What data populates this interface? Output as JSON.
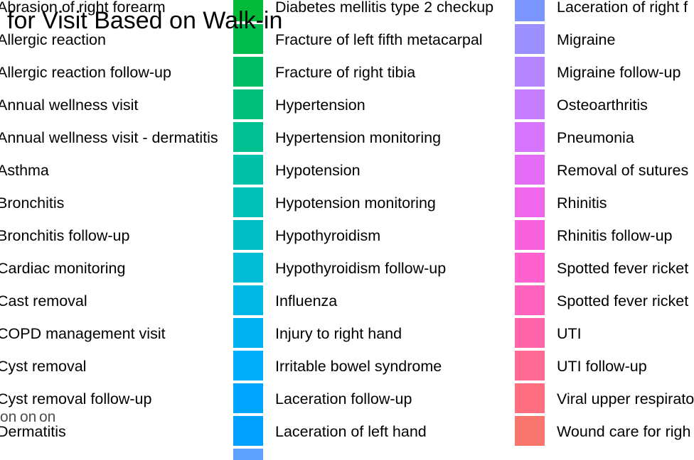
{
  "chart_data": {
    "type": "bar",
    "title": "for Visit Based on Walk-in",
    "axis_fragment": "on",
    "legend": {
      "placement": "right",
      "columns": [
        [
          {
            "label": "Abrasion of right forearm",
            "color": "#00BB4A"
          },
          {
            "label": "Allergic reaction",
            "color": "#00BD5C"
          },
          {
            "label": "Allergic reaction follow-up",
            "color": "#00BE6C"
          },
          {
            "label": "Annual wellness visit",
            "color": "#00BF7C"
          },
          {
            "label": "Annual wellness visit - dermatitis",
            "color": "#00C08B"
          },
          {
            "label": "Asthma",
            "color": "#00C19A"
          },
          {
            "label": "Bronchitis",
            "color": "#00C1A8"
          },
          {
            "label": "Bronchitis follow-up",
            "color": "#00C0B5"
          },
          {
            "label": "Cardiac monitoring",
            "color": "#00BFC2"
          },
          {
            "label": "Cast removal",
            "color": "#00BDCF"
          },
          {
            "label": "COPD management visit",
            "color": "#00BADB"
          },
          {
            "label": "Cyst removal",
            "color": "#00B6E6"
          },
          {
            "label": "Cyst removal follow-up",
            "color": "#00B1F1"
          },
          {
            "label": "Dermatitis",
            "color": "#00A9FF"
          }
        ],
        [
          {
            "label": "Diabetes mellitis type 2 checkup",
            "color": "#00BA38"
          },
          {
            "label": "Fracture of left fifth metacarpal",
            "color": "#00BB4E"
          },
          {
            "label": "Fracture of right tibia",
            "color": "#00BE67"
          },
          {
            "label": "Hypertension",
            "color": "#00BF7D"
          },
          {
            "label": "Hypertension monitoring",
            "color": "#00C092"
          },
          {
            "label": "Hypotension",
            "color": "#00C1A7"
          },
          {
            "label": "Hypotension monitoring",
            "color": "#00C0B8"
          },
          {
            "label": "Hypothyroidism",
            "color": "#00BFC4"
          },
          {
            "label": "Hypothyroidism follow-up",
            "color": "#00BCD5"
          },
          {
            "label": "Influenza",
            "color": "#00B8E5"
          },
          {
            "label": "Injury to right hand",
            "color": "#00B3F0"
          },
          {
            "label": "Irritable bowel syndrome",
            "color": "#00ADFA"
          },
          {
            "label": "Laceration follow-up",
            "color": "#00A5FF"
          },
          {
            "label": "Laceration of left hand",
            "color": "#00A1FF"
          }
        ],
        [
          {
            "label": "Laceration of right f",
            "color": "#7B97FF"
          },
          {
            "label": "Migraine",
            "color": "#9C8FFF"
          },
          {
            "label": "Migraine follow-up",
            "color": "#B385FF"
          },
          {
            "label": "Osteoarthritis",
            "color": "#C67CFF"
          },
          {
            "label": "Pneumonia",
            "color": "#D774FD"
          },
          {
            "label": "Removal of sutures",
            "color": "#E46CF6"
          },
          {
            "label": "Rhinitis",
            "color": "#EF67EB"
          },
          {
            "label": "Rhinitis follow-up",
            "color": "#F962DD"
          },
          {
            "label": "Spotted fever ricket",
            "color": "#FF61CF"
          },
          {
            "label": "Spotted fever ricket",
            "color": "#FF63BD"
          },
          {
            "label": "UTI",
            "color": "#FF66A9"
          },
          {
            "label": "UTI follow-up",
            "color": "#FF6B94"
          },
          {
            "label": "Viral upper respirato",
            "color": "#FF6F80"
          },
          {
            "label": "Wound care for righ",
            "color": "#F8766D"
          }
        ]
      ],
      "extra_key_color": "#5FA2FF"
    }
  }
}
